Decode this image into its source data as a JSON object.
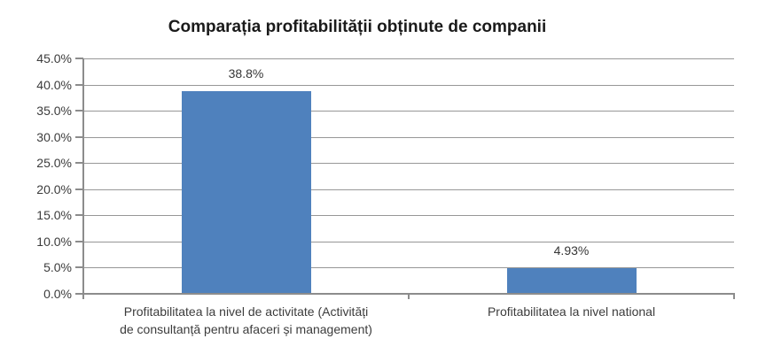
{
  "chart_data": {
    "type": "bar",
    "title": "Comparația profitabilității obținute de companii",
    "categories": [
      "Profitabilitatea la nivel de activitate (Activități\nde consultanță pentru afaceri și management)",
      "Profitabilitatea la nivel national"
    ],
    "values": [
      38.8,
      4.93
    ],
    "value_labels": [
      "38.8%",
      "4.93%"
    ],
    "ylim": [
      0,
      45
    ],
    "ytick_step": 5,
    "ytick_labels": [
      "0.0%",
      "5.0%",
      "10.0%",
      "15.0%",
      "20.0%",
      "25.0%",
      "30.0%",
      "35.0%",
      "40.0%",
      "45.0%"
    ],
    "grid": true,
    "legend": false,
    "xlabel": "",
    "ylabel": "",
    "colors": {
      "bar": "#4F81BD",
      "gridline": "#979797",
      "axis": "#8C8C8C",
      "tick_text": "#3C3C3C",
      "title_text": "#1A1A1A",
      "value_label_text": "#363636"
    }
  }
}
